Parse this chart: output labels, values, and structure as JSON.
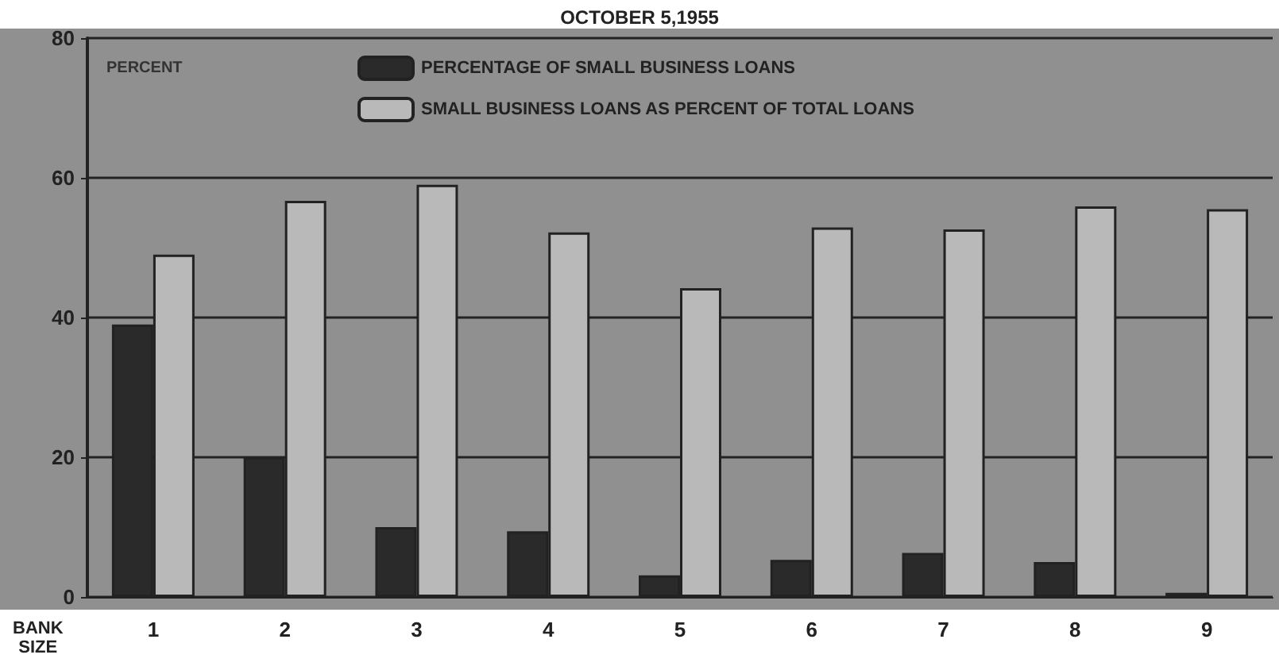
{
  "chart_data": {
    "type": "bar",
    "title": "OCTOBER 5,1955",
    "xlabel": "BANK SIZE",
    "ylabel": "PERCENT",
    "categories": [
      "1",
      "2",
      "3",
      "4",
      "5",
      "6",
      "7",
      "8",
      "9"
    ],
    "series": [
      {
        "name": "PERCENTAGE OF SMALL BUSINESS LOANS",
        "color": "#2a2a2a",
        "values": [
          39,
          20,
          10,
          9.4,
          3.1,
          5.3,
          6.3,
          5,
          0.6
        ]
      },
      {
        "name": "SMALL BUSINESS LOANS AS PERCENT OF TOTAL LOANS",
        "color": "#b9b9b9",
        "values": [
          49,
          56.7,
          59,
          52.2,
          44.2,
          52.9,
          52.6,
          55.9,
          55.5
        ]
      }
    ],
    "ylim": [
      0,
      80
    ],
    "yticks": [
      0,
      20,
      40,
      60,
      80
    ],
    "grid": "y",
    "legend": "top"
  }
}
